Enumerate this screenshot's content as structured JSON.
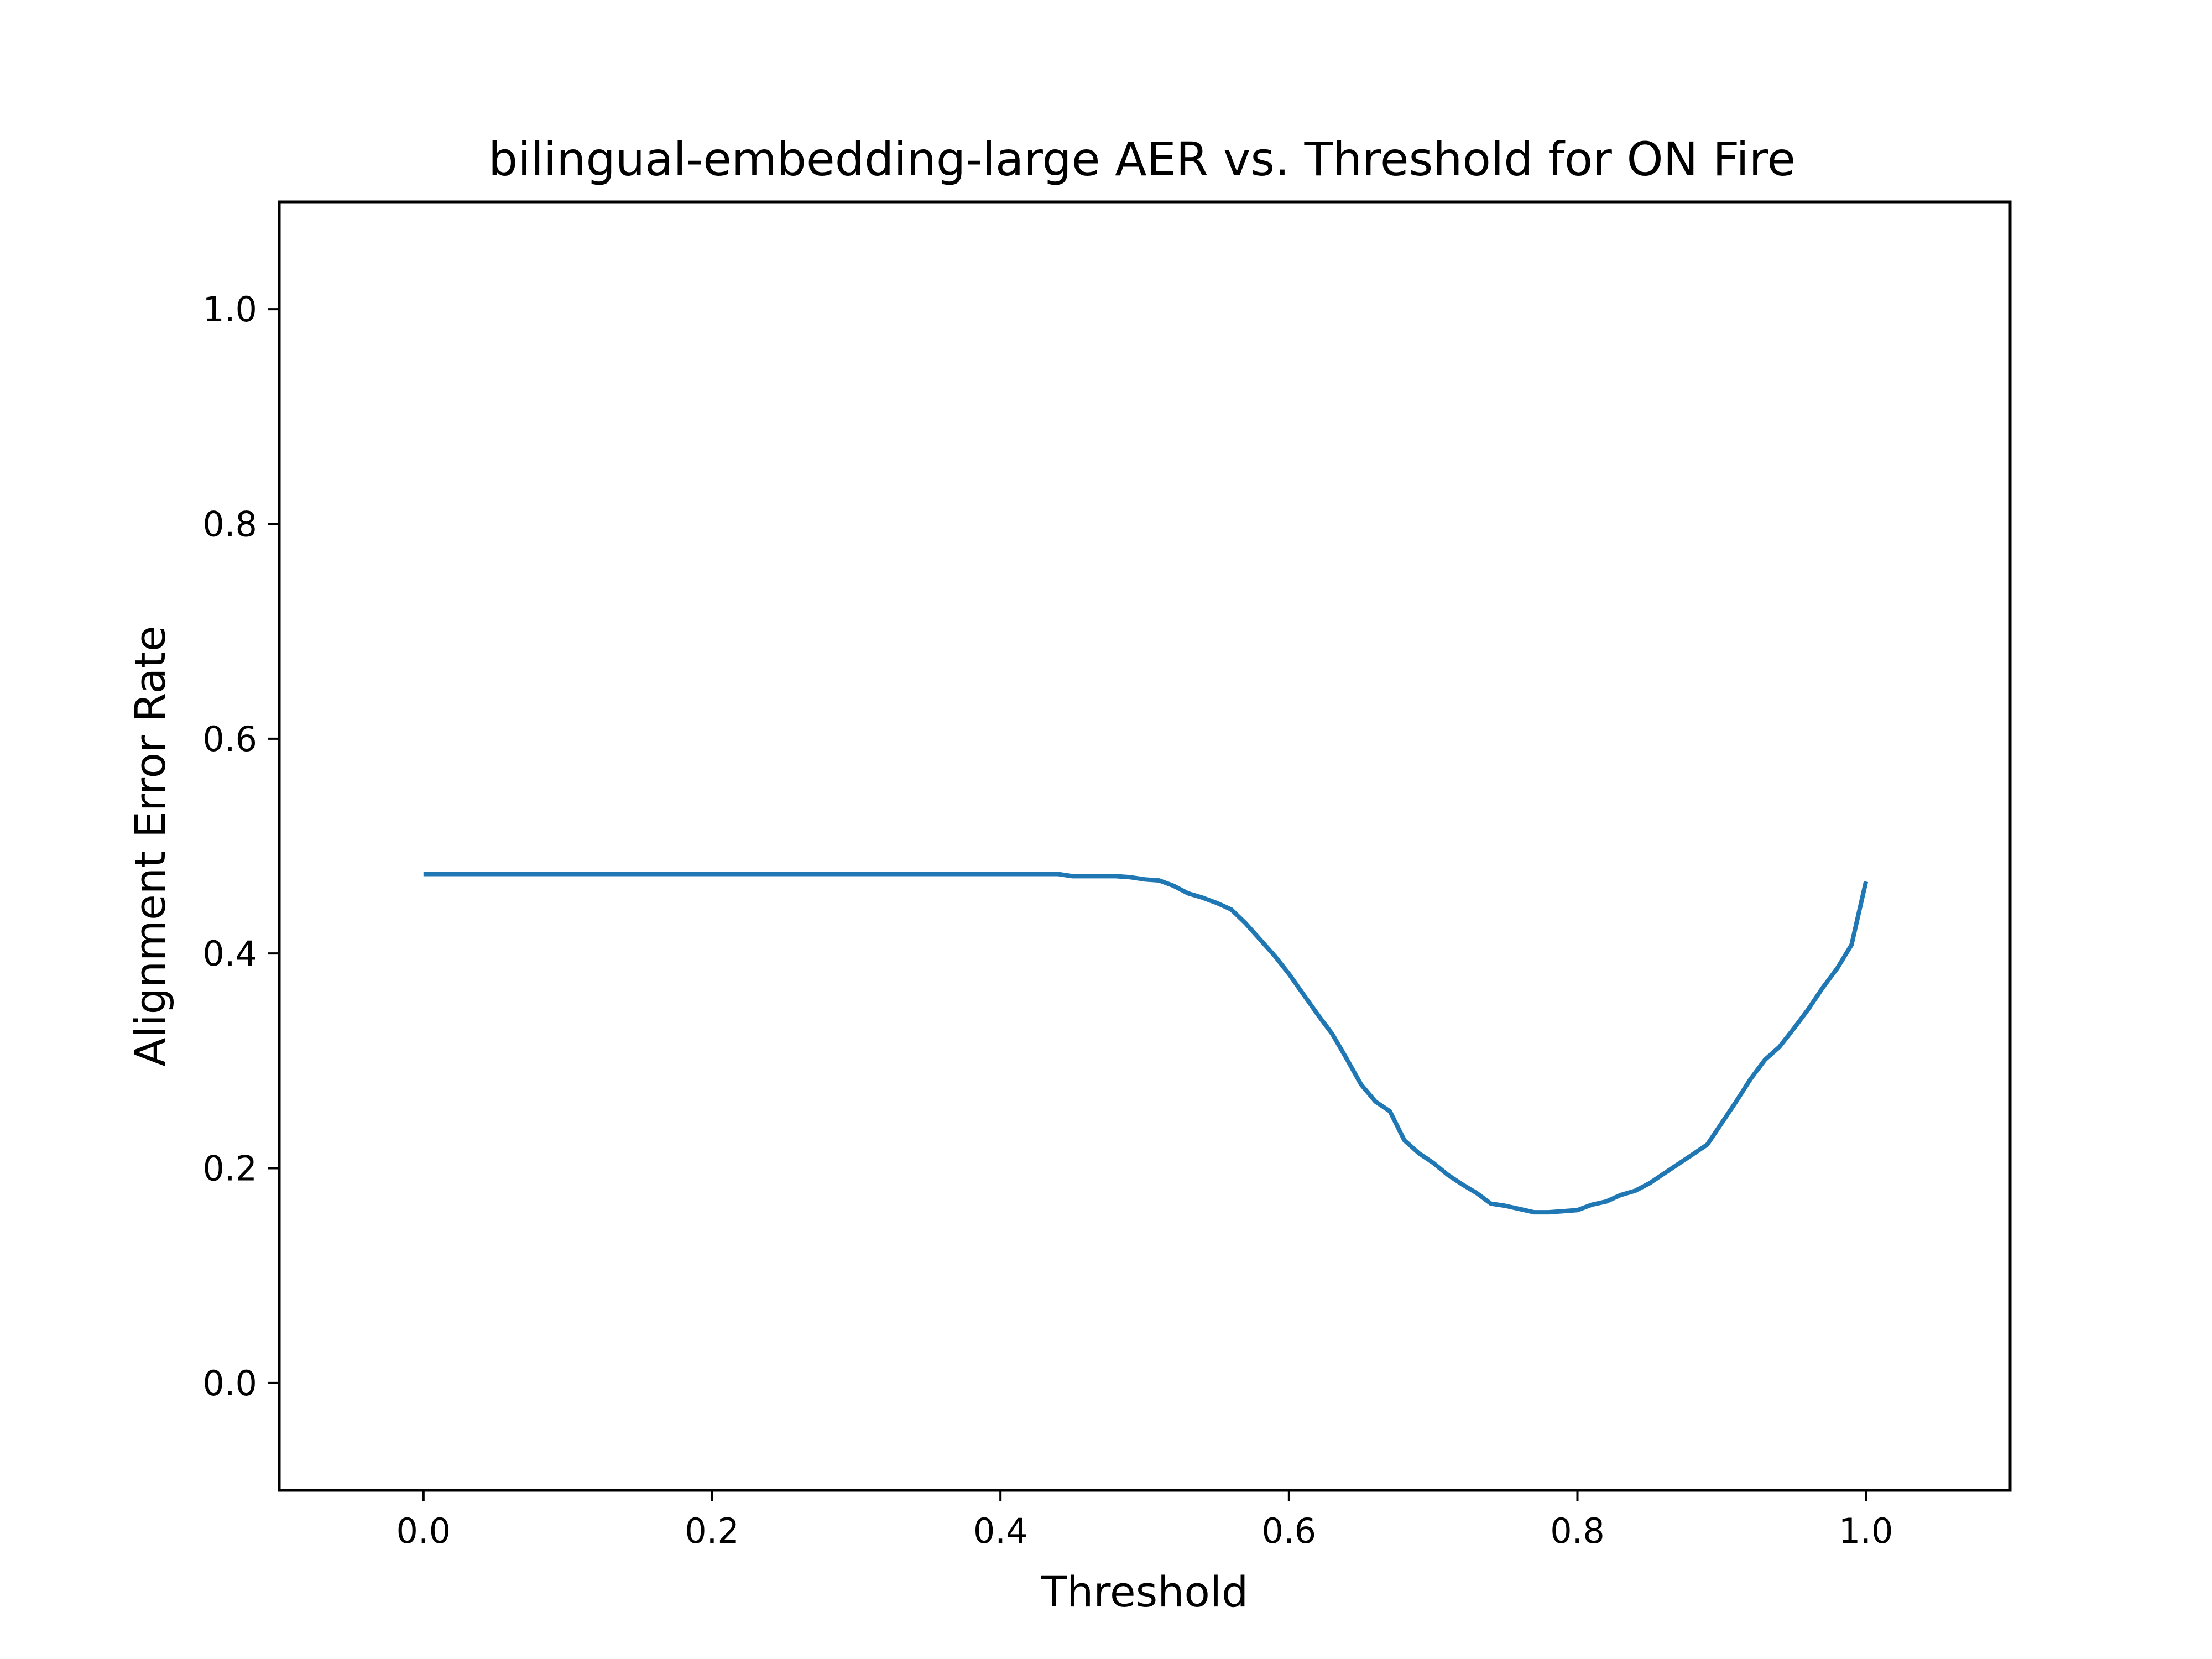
{
  "chart_data": {
    "type": "line",
    "title": "bilingual-embedding-large AER vs. Threshold for ON Fire",
    "xlabel": "Threshold",
    "ylabel": "Alignment Error Rate",
    "xlim": [
      -0.1,
      1.1
    ],
    "ylim": [
      -0.1,
      1.1
    ],
    "x_ticks": [
      "0.0",
      "0.2",
      "0.4",
      "0.6",
      "0.8",
      "1.0"
    ],
    "y_ticks": [
      "0.0",
      "0.2",
      "0.4",
      "0.6",
      "0.8",
      "1.0"
    ],
    "grid": false,
    "line_color": "#1f77b4",
    "series": [
      {
        "x": [
          0.0,
          0.05,
          0.1,
          0.15,
          0.2,
          0.25,
          0.3,
          0.35,
          0.4,
          0.44,
          0.45,
          0.46,
          0.47,
          0.48,
          0.49,
          0.5,
          0.51,
          0.52,
          0.53,
          0.54,
          0.55,
          0.56,
          0.57,
          0.58,
          0.59,
          0.6,
          0.61,
          0.62,
          0.63,
          0.64,
          0.65,
          0.66,
          0.67,
          0.68,
          0.69,
          0.7,
          0.71,
          0.72,
          0.73,
          0.74,
          0.75,
          0.76,
          0.77,
          0.78,
          0.79,
          0.8,
          0.81,
          0.82,
          0.83,
          0.84,
          0.85,
          0.86,
          0.87,
          0.88,
          0.89,
          0.9,
          0.91,
          0.92,
          0.93,
          0.94,
          0.95,
          0.96,
          0.97,
          0.98,
          0.99,
          1.0
        ],
        "y": [
          0.474,
          0.474,
          0.474,
          0.474,
          0.474,
          0.474,
          0.474,
          0.474,
          0.474,
          0.474,
          0.472,
          0.472,
          0.472,
          0.472,
          0.471,
          0.469,
          0.468,
          0.463,
          0.456,
          0.452,
          0.447,
          0.441,
          0.428,
          0.413,
          0.398,
          0.381,
          0.362,
          0.343,
          0.325,
          0.302,
          0.278,
          0.262,
          0.253,
          0.226,
          0.214,
          0.205,
          0.194,
          0.185,
          0.177,
          0.167,
          0.165,
          0.162,
          0.159,
          0.159,
          0.16,
          0.161,
          0.166,
          0.169,
          0.175,
          0.179,
          0.186,
          0.195,
          0.204,
          0.213,
          0.222,
          0.242,
          0.262,
          0.283,
          0.301,
          0.313,
          0.33,
          0.348,
          0.368,
          0.386,
          0.408,
          0.467
        ]
      }
    ]
  }
}
